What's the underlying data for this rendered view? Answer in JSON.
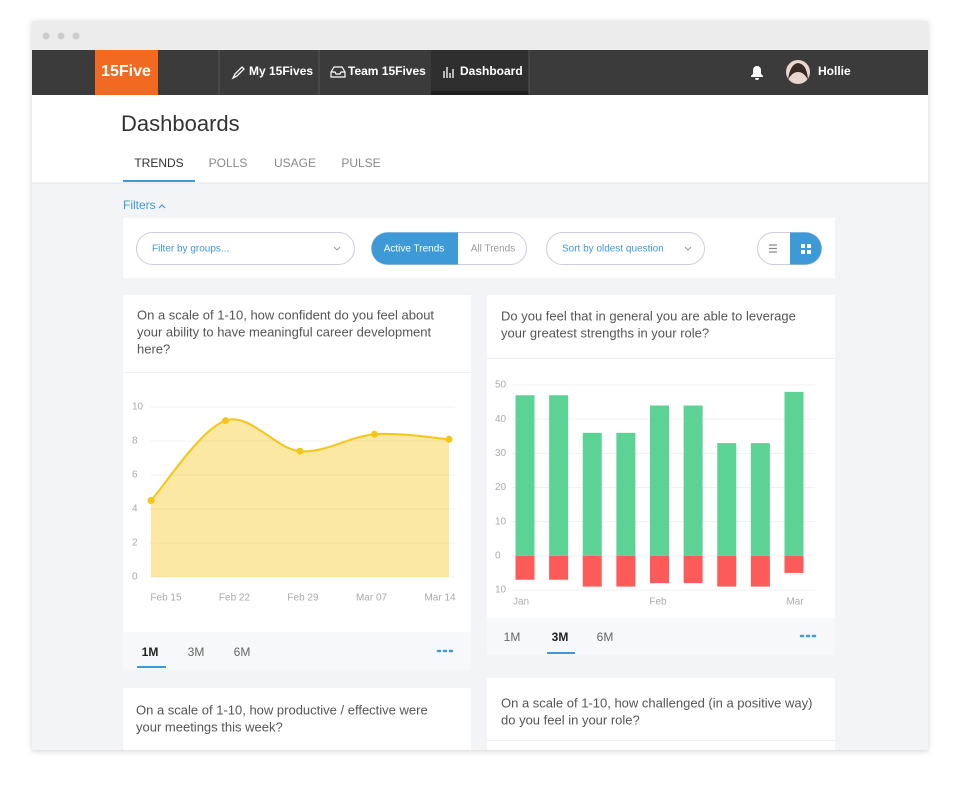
{
  "nav": {
    "logo": "15Five",
    "items": [
      "My 15Fives",
      "Team 15Fives",
      "Dashboard"
    ],
    "user": "Hollie"
  },
  "header": {
    "title": "Dashboards",
    "tabs": [
      "TRENDS",
      "POLLS",
      "USAGE",
      "PULSE"
    ]
  },
  "filters": {
    "label": "Filters",
    "groups": "Filter by groups...",
    "toggle": [
      "Active Trends",
      "All Trends"
    ],
    "sort": "Sort by oldest question"
  },
  "cards": [
    {
      "question": [
        "On a scale of 1-10, how confident do you feel about",
        "your ability to have meaningful career development",
        "here?"
      ],
      "ranges": [
        "1M",
        "3M",
        "6M"
      ]
    },
    {
      "question": [
        "Do you feel that in general you are able to leverage",
        "your greatest strengths in your role?"
      ],
      "ranges": [
        "1M",
        "3M",
        "6M"
      ]
    },
    {
      "question": [
        "On a scale of 1-10, how productive / effective were",
        "your meetings this week?"
      ]
    },
    {
      "question": [
        "On a scale of 1-10, how challenged (in a positive way)",
        "do you feel in your role?"
      ]
    }
  ],
  "chart_data": [
    {
      "type": "area",
      "categories": [
        "Feb 15",
        "Feb 22",
        "Feb 29",
        "Mar 07",
        "Mar 14"
      ],
      "values": [
        4.5,
        9.2,
        7.4,
        8.4,
        8.1
      ],
      "color": "#f5c518",
      "ylim": [
        0,
        10
      ],
      "yticks": [
        0,
        2,
        4,
        6,
        8,
        10
      ],
      "grid": true
    },
    {
      "type": "bar",
      "categories": [
        "Jan",
        null,
        null,
        null,
        "Feb",
        null,
        null,
        null,
        "Mar"
      ],
      "series": [
        {
          "color": "#5cd394",
          "values": [
            47,
            47,
            36,
            36,
            44,
            44,
            33,
            33,
            48
          ]
        },
        {
          "color": "#fd5a5a",
          "values": [
            -7,
            -7,
            -9,
            -9,
            -8,
            -8,
            -9,
            -9,
            -5
          ]
        }
      ],
      "ylim": [
        -10,
        50
      ],
      "yticks": [
        {
          "value": -10,
          "label": "10"
        },
        0,
        10,
        20,
        30,
        40,
        50
      ],
      "grid": true
    }
  ]
}
